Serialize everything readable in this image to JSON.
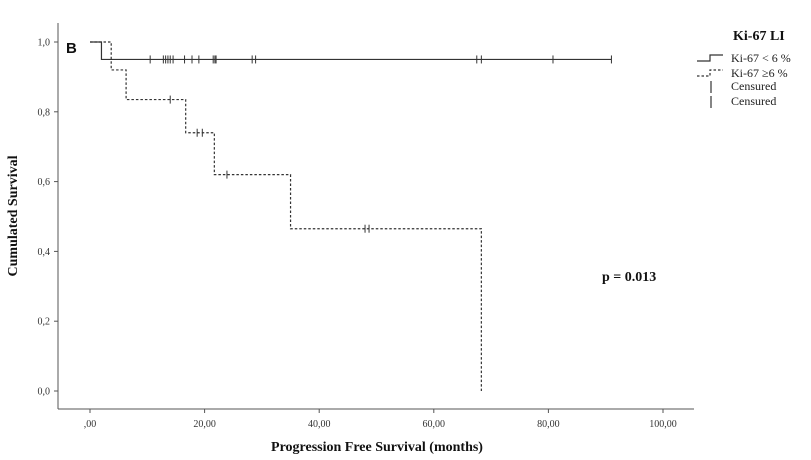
{
  "chart_data": {
    "type": "line",
    "subtype": "kaplan-meier",
    "panel_label": "B",
    "xlabel": "Progression Free Survival (months)",
    "ylabel": "Cumulated Survival",
    "xlim": [
      0,
      100
    ],
    "ylim": [
      0,
      1
    ],
    "x_ticks": [
      ",00",
      "20,00",
      "40,00",
      "60,00",
      "80,00",
      "100,00"
    ],
    "x_tick_values": [
      0,
      20,
      40,
      60,
      80,
      100
    ],
    "y_ticks": [
      "0,0",
      "0,2",
      "0,4",
      "0,6",
      "0,8",
      "1,0"
    ],
    "y_tick_values": [
      0,
      0.2,
      0.4,
      0.6,
      0.8,
      1.0
    ],
    "legend": {
      "title": "Ki-67 LI",
      "position": "top-right",
      "entries": [
        {
          "label": "Ki-67 < 6 %",
          "style": "solid-step"
        },
        {
          "label": "Ki-67 ≥6 %",
          "style": "dashed-step"
        },
        {
          "label": "Censured",
          "style": "censor-tick"
        },
        {
          "label": "Censured",
          "style": "censor-tick"
        }
      ]
    },
    "series": [
      {
        "name": "Ki-67 < 6 %",
        "style": "solid",
        "steps": [
          [
            0,
            1.0
          ],
          [
            2,
            0.95
          ],
          [
            91,
            0.95
          ]
        ],
        "censored": [
          {
            "x": 10.5,
            "y": 0.95
          },
          {
            "x": 12.8,
            "y": 0.95
          },
          {
            "x": 13.2,
            "y": 0.95
          },
          {
            "x": 13.6,
            "y": 0.95
          },
          {
            "x": 14.0,
            "y": 0.95
          },
          {
            "x": 14.5,
            "y": 0.95
          },
          {
            "x": 16.5,
            "y": 0.95
          },
          {
            "x": 17.8,
            "y": 0.95
          },
          {
            "x": 19.0,
            "y": 0.95
          },
          {
            "x": 21.5,
            "y": 0.95
          },
          {
            "x": 21.8,
            "y": 0.95
          },
          {
            "x": 22.0,
            "y": 0.95
          },
          {
            "x": 28.3,
            "y": 0.95
          },
          {
            "x": 28.9,
            "y": 0.95
          },
          {
            "x": 67.5,
            "y": 0.95
          },
          {
            "x": 68.3,
            "y": 0.95
          },
          {
            "x": 80.8,
            "y": 0.95
          },
          {
            "x": 91.0,
            "y": 0.95
          }
        ]
      },
      {
        "name": "Ki-67 ≥6 %",
        "style": "dashed",
        "steps": [
          [
            0,
            1.0
          ],
          [
            3.7,
            0.92
          ],
          [
            6.3,
            0.835
          ],
          [
            16.7,
            0.74
          ],
          [
            21.7,
            0.62
          ],
          [
            35.0,
            0.465
          ],
          [
            68.3,
            0.0
          ]
        ],
        "censored": [
          {
            "x": 14.0,
            "y": 0.835
          },
          {
            "x": 18.7,
            "y": 0.74
          },
          {
            "x": 19.6,
            "y": 0.74
          },
          {
            "x": 23.9,
            "y": 0.62
          },
          {
            "x": 48.0,
            "y": 0.465
          },
          {
            "x": 48.7,
            "y": 0.465
          }
        ]
      }
    ],
    "annotations": [
      {
        "text": "p = 0.013"
      }
    ]
  }
}
